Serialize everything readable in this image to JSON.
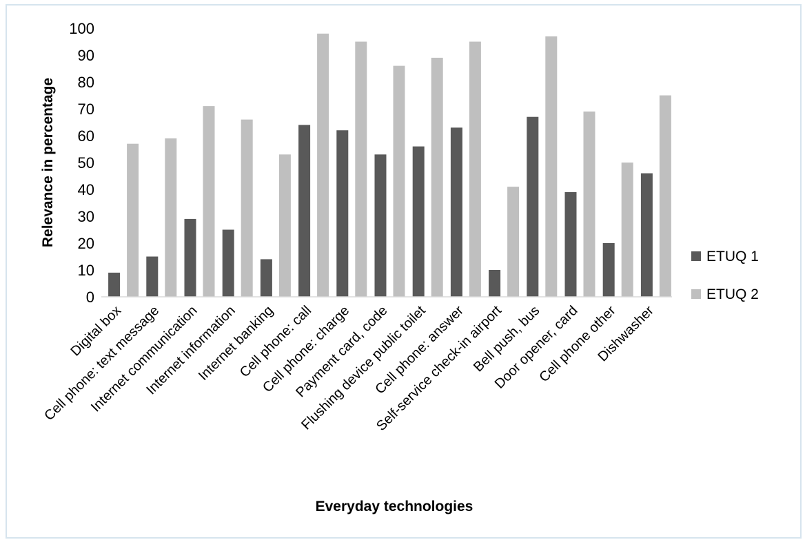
{
  "chart_data": {
    "type": "bar",
    "xlabel": "Everyday technologies",
    "ylabel": "Relevance in percentage",
    "ylim": [
      0,
      100
    ],
    "yticks": [
      "0",
      "10",
      "20",
      "30",
      "40",
      "50",
      "60",
      "70",
      "80",
      "90",
      "100"
    ],
    "grid": false,
    "legend_position": "right",
    "categories": [
      "Digital box",
      "Cell phone: text message",
      "Internet communication",
      "Internet information",
      "Internet banking",
      "Cell phone: call",
      "Cell phone: charge",
      "Payment card, code",
      "Flushing device public toilet",
      "Cell phone: answer",
      "Self-service check-in airport",
      "Bell push, bus",
      "Door opener, card",
      "Cell phone other",
      "Dishwasher"
    ],
    "series": [
      {
        "name": "ETUQ 1",
        "color": "#595959",
        "values": [
          9,
          15,
          29,
          25,
          14,
          64,
          62,
          53,
          56,
          63,
          10,
          67,
          39,
          20,
          46
        ]
      },
      {
        "name": "ETUQ 2",
        "color": "#bfbfbf",
        "values": [
          57,
          59,
          71,
          66,
          53,
          98,
          95,
          86,
          89,
          95,
          41,
          97,
          69,
          50,
          75
        ]
      }
    ]
  }
}
